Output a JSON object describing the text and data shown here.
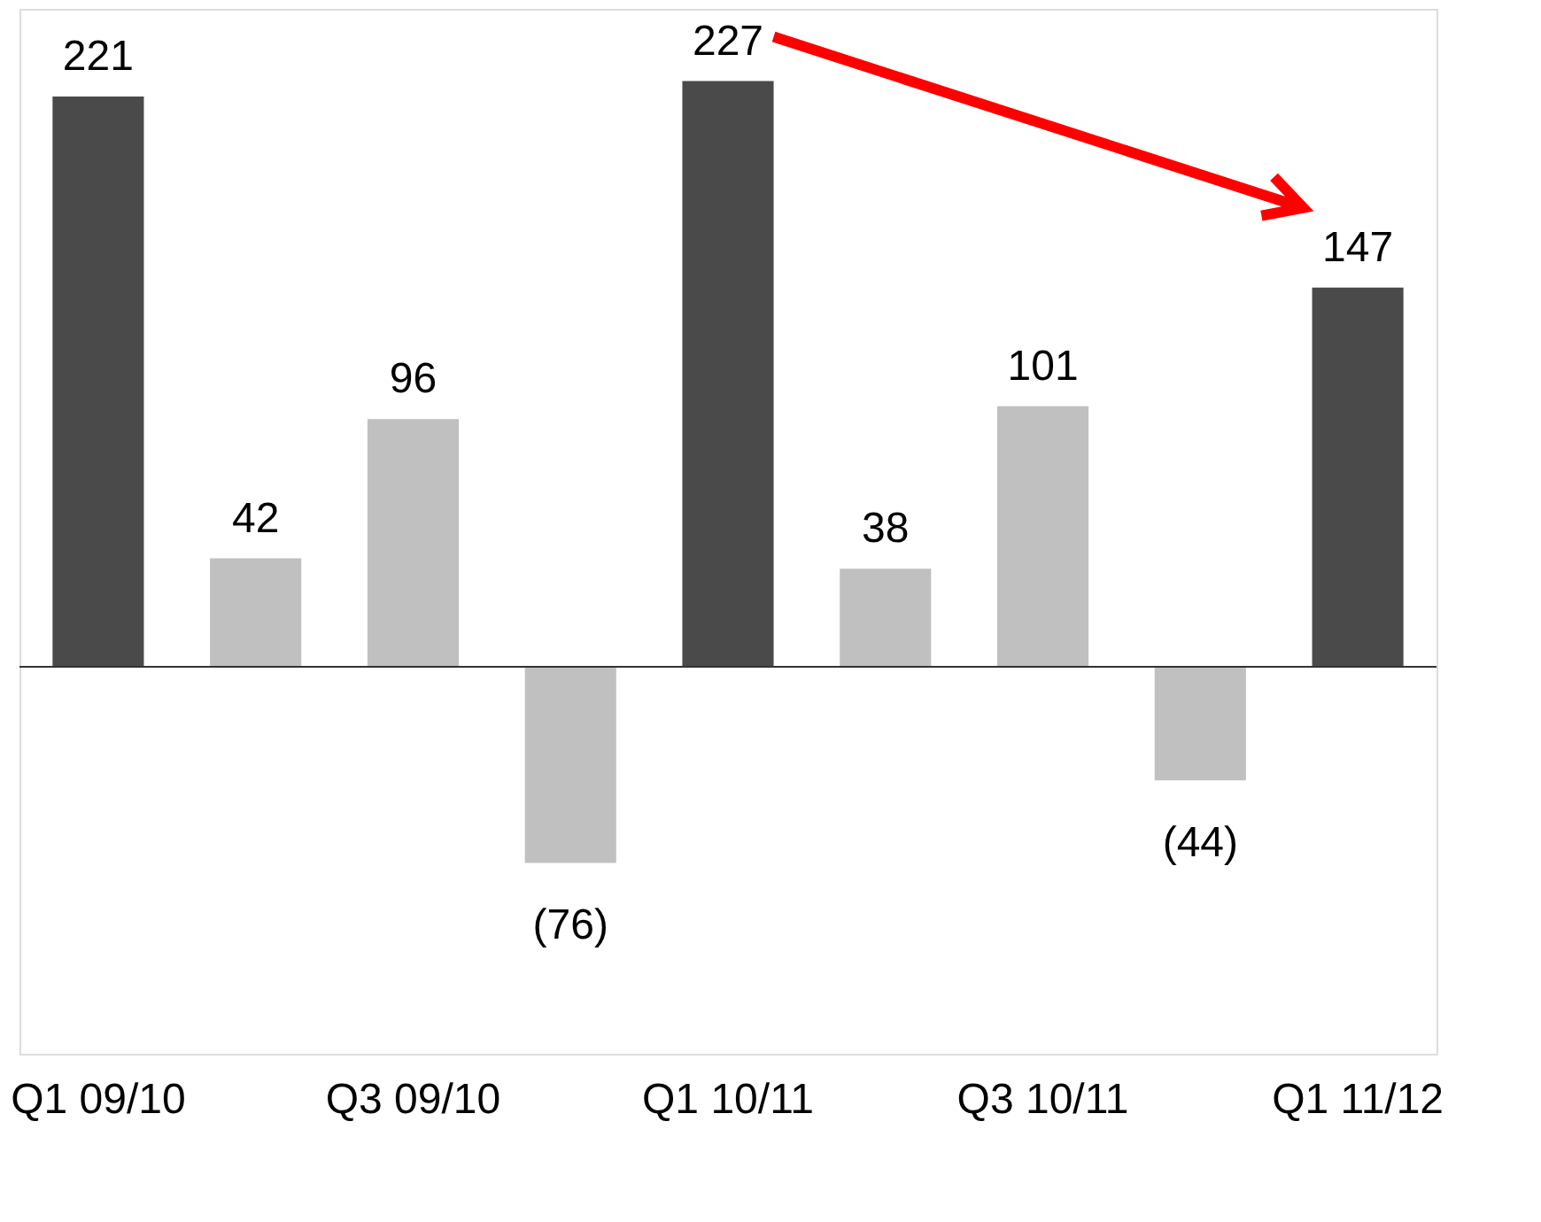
{
  "chart_data": {
    "type": "bar",
    "categories": [
      "Q1 09/10",
      null,
      "Q3 09/10",
      null,
      "Q1 10/11",
      null,
      "Q3 10/11",
      null,
      "Q1 11/12"
    ],
    "values": [
      221,
      42,
      96,
      -76,
      227,
      38,
      101,
      -44,
      147
    ],
    "colors": [
      "#4a4a4a",
      "#c0c0c0",
      "#c0c0c0",
      "#c0c0c0",
      "#4a4a4a",
      "#c0c0c0",
      "#c0c0c0",
      "#c0c0c0",
      "#4a4a4a"
    ],
    "value_labels": [
      "221",
      "42",
      "96",
      "(76)",
      "227",
      "38",
      "101",
      "(44)",
      "147"
    ],
    "ylim": [
      -150,
      255
    ],
    "tick_labels": "x",
    "grid": false
  }
}
